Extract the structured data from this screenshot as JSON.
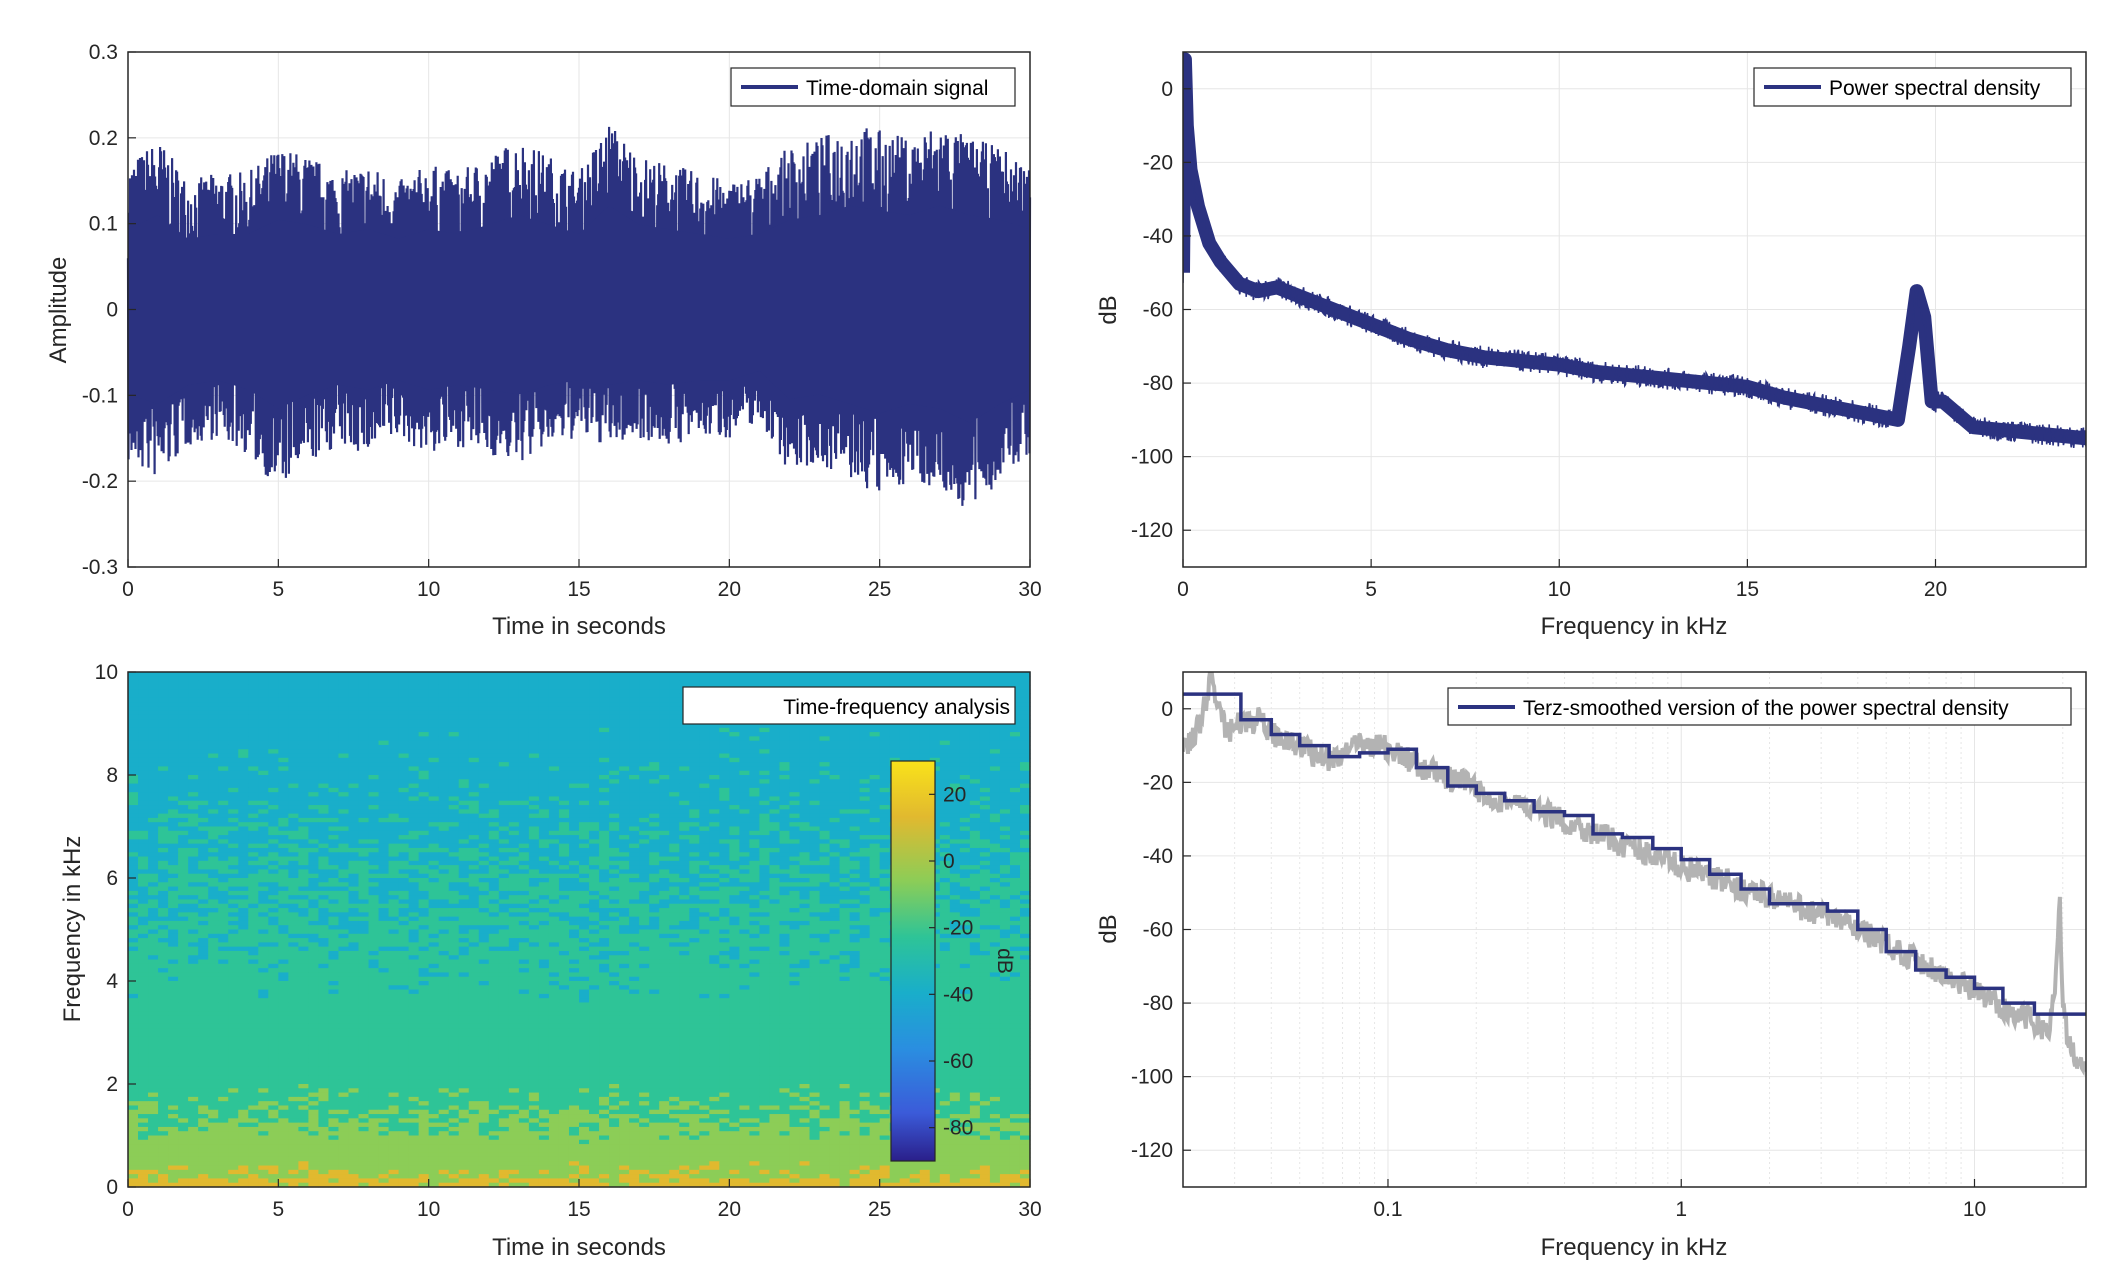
{
  "colors": {
    "series": "#2b3280",
    "grey": "#b3b3b3",
    "grid": "#e6e6e6",
    "axis": "#262626"
  },
  "chart_data": [
    {
      "type": "line",
      "xlabel": "Time in seconds",
      "ylabel": "Amplitude",
      "xlim": [
        0,
        30
      ],
      "ylim": [
        -0.3,
        0.3
      ],
      "xticks": [
        0,
        5,
        10,
        15,
        20,
        25,
        30
      ],
      "yticks": [
        0.3,
        0.2,
        0.1,
        0,
        -0.1,
        -0.2,
        -0.3
      ],
      "xtick_labels": [
        "0",
        "5",
        "10",
        "15",
        "20",
        "25",
        "30"
      ],
      "ytick_labels": [
        "0.3",
        "0.2",
        "0.1",
        "0",
        "-0.1",
        "-0.2",
        "-0.3"
      ],
      "grid": true,
      "legend": "top-right",
      "series": [
        {
          "name": "Time-domain signal",
          "x": [
            0,
            1,
            2,
            3,
            4,
            5,
            6,
            7,
            8,
            9,
            10,
            11,
            12,
            13,
            14,
            15,
            16,
            17,
            18,
            19,
            20,
            21,
            22,
            23,
            24,
            25,
            26,
            27,
            28,
            29,
            30
          ],
          "upper": [
            0.17,
            0.2,
            0.15,
            0.16,
            0.16,
            0.19,
            0.18,
            0.16,
            0.17,
            0.15,
            0.17,
            0.16,
            0.18,
            0.2,
            0.18,
            0.16,
            0.22,
            0.18,
            0.17,
            0.16,
            0.15,
            0.16,
            0.19,
            0.2,
            0.22,
            0.21,
            0.2,
            0.22,
            0.2,
            0.19,
            0.17
          ],
          "lower": [
            -0.18,
            -0.2,
            -0.16,
            -0.15,
            -0.17,
            -0.21,
            -0.18,
            -0.16,
            -0.17,
            -0.15,
            -0.17,
            -0.16,
            -0.17,
            -0.18,
            -0.16,
            -0.15,
            -0.16,
            -0.15,
            -0.16,
            -0.15,
            -0.15,
            -0.13,
            -0.19,
            -0.18,
            -0.2,
            -0.22,
            -0.2,
            -0.21,
            -0.24,
            -0.2,
            -0.17
          ]
        }
      ]
    },
    {
      "type": "line",
      "xlabel": "Frequency in kHz",
      "ylabel": "dB",
      "xlim": [
        0,
        24
      ],
      "ylim": [
        -130,
        10
      ],
      "xticks": [
        0,
        5,
        10,
        15,
        20
      ],
      "yticks": [
        0,
        -20,
        -40,
        -60,
        -80,
        -100,
        -120
      ],
      "xtick_labels": [
        "0",
        "5",
        "10",
        "15",
        "20"
      ],
      "ytick_labels": [
        "0",
        "-20",
        "-40",
        "-60",
        "-80",
        "-100",
        "-120"
      ],
      "grid": true,
      "legend": "top-right",
      "series": [
        {
          "name": "Power spectral density",
          "x": [
            0,
            0.05,
            0.1,
            0.2,
            0.4,
            0.7,
            1,
            1.5,
            2,
            2.5,
            3,
            3.5,
            4,
            5,
            6,
            7,
            8,
            9,
            10,
            11,
            12,
            13,
            14,
            15,
            16,
            17,
            18,
            19,
            19.3,
            19.5,
            19.7,
            19.9,
            20.2,
            21,
            22,
            23,
            24
          ],
          "y": [
            -50,
            8,
            -10,
            -22,
            -32,
            -42,
            -47,
            -53,
            -55,
            -54,
            -56,
            -58,
            -60,
            -64,
            -68,
            -71,
            -73,
            -74,
            -75,
            -77,
            -78,
            -79,
            -80,
            -81,
            -84,
            -86,
            -88,
            -90,
            -70,
            -55,
            -62,
            -85,
            -85,
            -92,
            -93,
            -94,
            -95
          ]
        }
      ]
    },
    {
      "type": "heatmap",
      "xlabel": "Time in seconds",
      "ylabel": "Frequency in kHz",
      "xlim": [
        0,
        30
      ],
      "ylim": [
        0,
        10
      ],
      "xticks": [
        0,
        5,
        10,
        15,
        20,
        25,
        30
      ],
      "yticks": [
        10,
        8,
        6,
        4,
        2,
        0
      ],
      "xtick_labels": [
        "0",
        "5",
        "10",
        "15",
        "20",
        "25",
        "30"
      ],
      "ytick_labels": [
        "10",
        "8",
        "6",
        "4",
        "2",
        "0"
      ],
      "legend": "top-right",
      "legend_label": "Time-frequency analysis",
      "colorbar": {
        "label": "dB",
        "range": [
          -90,
          30
        ],
        "ticks": [
          20,
          0,
          -20,
          -40,
          -60,
          -80
        ],
        "tick_labels": [
          "20",
          "0",
          "-20",
          "-40",
          "-60",
          "-80"
        ],
        "colors": [
          "#2a1f8a",
          "#3b5bd9",
          "#2a8ee0",
          "#19aeca",
          "#2ec497",
          "#8ccd57",
          "#e1b92f",
          "#f9e21a"
        ]
      },
      "freq_profile_khz": [
        0,
        0.2,
        0.5,
        1,
        1.5,
        2,
        3,
        4,
        5,
        6,
        7,
        8,
        9,
        10
      ],
      "level_db": [
        5,
        0,
        -5,
        -12,
        -16,
        -20,
        -24,
        -26,
        -28,
        -30,
        -32,
        -34,
        -35,
        -35
      ]
    },
    {
      "type": "line",
      "xlabel": "Frequency in kHz",
      "ylabel": "dB",
      "xscale": "log",
      "xlim": [
        0.02,
        24
      ],
      "ylim": [
        -130,
        10
      ],
      "xticks": [
        0.1,
        1,
        10
      ],
      "yticks": [
        0,
        -20,
        -40,
        -60,
        -80,
        -100,
        -120
      ],
      "xtick_labels": [
        "0.1",
        "1",
        "10"
      ],
      "ytick_labels": [
        "0",
        "-20",
        "-40",
        "-60",
        "-80",
        "-100",
        "-120"
      ],
      "grid": true,
      "legend": "top-right",
      "series": [
        {
          "name": "",
          "x": [
            0.02,
            0.022,
            0.025,
            0.028,
            0.032,
            0.036,
            0.04,
            0.045,
            0.05,
            0.056,
            0.063,
            0.07,
            0.08,
            0.09,
            0.1,
            0.112,
            0.125,
            0.14,
            0.16,
            0.18,
            0.2,
            0.22,
            0.25,
            0.28,
            0.32,
            0.36,
            0.4,
            0.45,
            0.5,
            0.56,
            0.63,
            0.7,
            0.8,
            0.9,
            1,
            1.12,
            1.25,
            1.4,
            1.6,
            1.8,
            2,
            2.2,
            2.5,
            2.8,
            3.2,
            3.6,
            4,
            4.5,
            5,
            5.6,
            6.3,
            7,
            8,
            9,
            10,
            11.2,
            12.5,
            14,
            16,
            18,
            19,
            19.5,
            20,
            21,
            22,
            24
          ],
          "y": [
            -10,
            -8,
            8,
            -6,
            -4,
            -3,
            -7,
            -8,
            -10,
            -12,
            -14,
            -12,
            -10,
            -9,
            -11,
            -13,
            -15,
            -17,
            -19,
            -20,
            -22,
            -24,
            -25,
            -26,
            -28,
            -29,
            -31,
            -32,
            -34,
            -35,
            -37,
            -38,
            -40,
            -41,
            -43,
            -44,
            -46,
            -47,
            -49,
            -50,
            -51,
            -52,
            -54,
            -55,
            -57,
            -58,
            -60,
            -62,
            -64,
            -66,
            -68,
            -70,
            -73,
            -75,
            -77,
            -79,
            -81,
            -83,
            -85,
            -88,
            -72,
            -48,
            -80,
            -92,
            -94,
            -96
          ]
        },
        {
          "name": "Terz-smoothed version of the power spectral density",
          "x": [
            0.02,
            0.0315,
            0.0315,
            0.04,
            0.04,
            0.05,
            0.05,
            0.063,
            0.063,
            0.08,
            0.08,
            0.1,
            0.1,
            0.125,
            0.125,
            0.16,
            0.16,
            0.2,
            0.2,
            0.25,
            0.25,
            0.315,
            0.315,
            0.4,
            0.4,
            0.5,
            0.5,
            0.63,
            0.63,
            0.8,
            0.8,
            1,
            1,
            1.25,
            1.25,
            1.6,
            1.6,
            2,
            2,
            2.5,
            2.5,
            3.15,
            3.15,
            4,
            4,
            5,
            5,
            6.3,
            6.3,
            8,
            8,
            10,
            10,
            12.5,
            12.5,
            16,
            16,
            24
          ],
          "y": [
            4,
            4,
            -3,
            -3,
            -7,
            -7,
            -10,
            -10,
            -13,
            -13,
            -12,
            -12,
            -11,
            -11,
            -16,
            -16,
            -21,
            -21,
            -23,
            -23,
            -25,
            -25,
            -28,
            -28,
            -29,
            -29,
            -34,
            -34,
            -35,
            -35,
            -38,
            -38,
            -41,
            -41,
            -45,
            -45,
            -49,
            -49,
            -53,
            -53,
            -53,
            -53,
            -55,
            -55,
            -60,
            -60,
            -66,
            -66,
            -71,
            -71,
            -73,
            -73,
            -76,
            -76,
            -80,
            -80,
            -83,
            -83
          ]
        }
      ]
    }
  ]
}
